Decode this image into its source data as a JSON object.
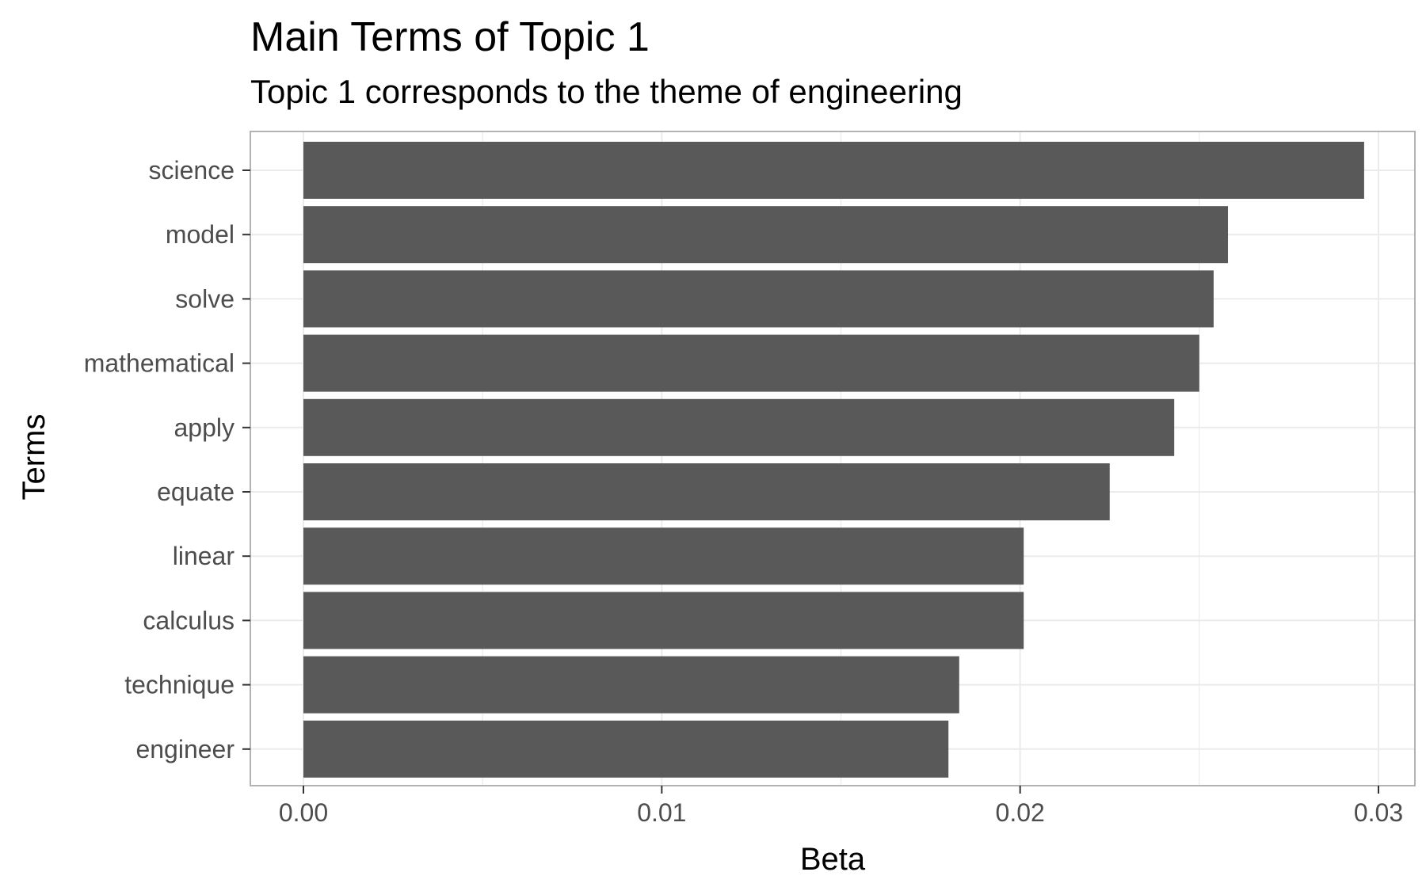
{
  "chart_data": {
    "type": "bar",
    "orientation": "horizontal",
    "title": "Main Terms of Topic 1",
    "subtitle": "Topic 1 corresponds to the theme of engineering",
    "xlabel": "Beta",
    "ylabel": "Terms",
    "categories": [
      "science",
      "model",
      "solve",
      "mathematical",
      "apply",
      "equate",
      "linear",
      "calculus",
      "technique",
      "engineer"
    ],
    "values": [
      0.0296,
      0.0258,
      0.0254,
      0.025,
      0.0243,
      0.0225,
      0.0201,
      0.0201,
      0.0183,
      0.018
    ],
    "xlim": [
      0,
      0.03
    ],
    "x_ticks": [
      "0.00",
      "0.01",
      "0.02",
      "0.03"
    ],
    "grid": true,
    "bar_color": "#595959",
    "grid_color": "#ebebeb",
    "panel_border_color": "#b3b3b3"
  }
}
